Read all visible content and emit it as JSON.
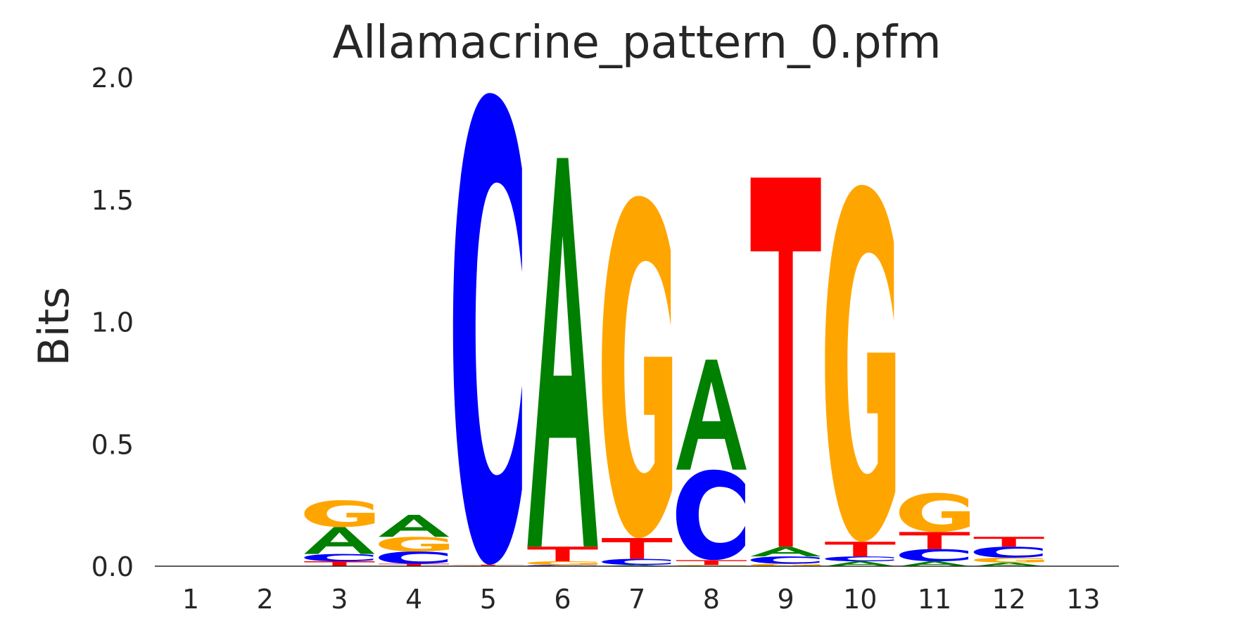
{
  "chart_data": {
    "type": "sequence-logo",
    "title": "Allamacrine_pattern_0.pfm",
    "ylabel": "Bits",
    "xlabel": "",
    "ylim": [
      0,
      2.0
    ],
    "yticks": [
      "0.0",
      "0.5",
      "1.0",
      "1.5",
      "2.0"
    ],
    "positions": [
      "1",
      "2",
      "3",
      "4",
      "5",
      "6",
      "7",
      "8",
      "9",
      "10",
      "11",
      "12",
      "13"
    ],
    "colors": {
      "A": "#008000",
      "C": "#0000ff",
      "G": "#ffa500",
      "T": "#ff0000"
    },
    "columns": [
      {
        "position": "1",
        "letters": []
      },
      {
        "position": "2",
        "letters": []
      },
      {
        "position": "3",
        "letters": [
          {
            "base": "T",
            "height": 0.02
          },
          {
            "base": "C",
            "height": 0.03
          },
          {
            "base": "A",
            "height": 0.11
          },
          {
            "base": "G",
            "height": 0.11
          }
        ]
      },
      {
        "position": "4",
        "letters": [
          {
            "base": "T",
            "height": 0.01
          },
          {
            "base": "C",
            "height": 0.05
          },
          {
            "base": "G",
            "height": 0.06
          },
          {
            "base": "A",
            "height": 0.09
          }
        ]
      },
      {
        "position": "5",
        "letters": [
          {
            "base": "G",
            "height": 0.003
          },
          {
            "base": "T",
            "height": 0.003
          },
          {
            "base": "C",
            "height": 1.93
          }
        ]
      },
      {
        "position": "6",
        "letters": [
          {
            "base": "C",
            "height": 0.005
          },
          {
            "base": "G",
            "height": 0.015
          },
          {
            "base": "T",
            "height": 0.06
          },
          {
            "base": "A",
            "height": 1.59
          }
        ]
      },
      {
        "position": "7",
        "letters": [
          {
            "base": "A",
            "height": 0.005
          },
          {
            "base": "C",
            "height": 0.025
          },
          {
            "base": "T",
            "height": 0.085
          },
          {
            "base": "G",
            "height": 1.4
          }
        ]
      },
      {
        "position": "8",
        "letters": [
          {
            "base": "G",
            "height": 0.005
          },
          {
            "base": "T",
            "height": 0.02
          },
          {
            "base": "C",
            "height": 0.37
          },
          {
            "base": "A",
            "height": 0.45
          }
        ]
      },
      {
        "position": "9",
        "letters": [
          {
            "base": "G",
            "height": 0.01
          },
          {
            "base": "C",
            "height": 0.03
          },
          {
            "base": "A",
            "height": 0.04
          },
          {
            "base": "T",
            "height": 1.51
          }
        ]
      },
      {
        "position": "10",
        "letters": [
          {
            "base": "A",
            "height": 0.02
          },
          {
            "base": "C",
            "height": 0.02
          },
          {
            "base": "T",
            "height": 0.06
          },
          {
            "base": "G",
            "height": 1.46
          }
        ]
      },
      {
        "position": "11",
        "letters": [
          {
            "base": "A",
            "height": 0.02
          },
          {
            "base": "C",
            "height": 0.05
          },
          {
            "base": "T",
            "height": 0.07
          },
          {
            "base": "G",
            "height": 0.16
          }
        ]
      },
      {
        "position": "12",
        "letters": [
          {
            "base": "A",
            "height": 0.015
          },
          {
            "base": "G",
            "height": 0.02
          },
          {
            "base": "C",
            "height": 0.045
          },
          {
            "base": "T",
            "height": 0.04
          }
        ]
      },
      {
        "position": "13",
        "letters": []
      }
    ]
  }
}
